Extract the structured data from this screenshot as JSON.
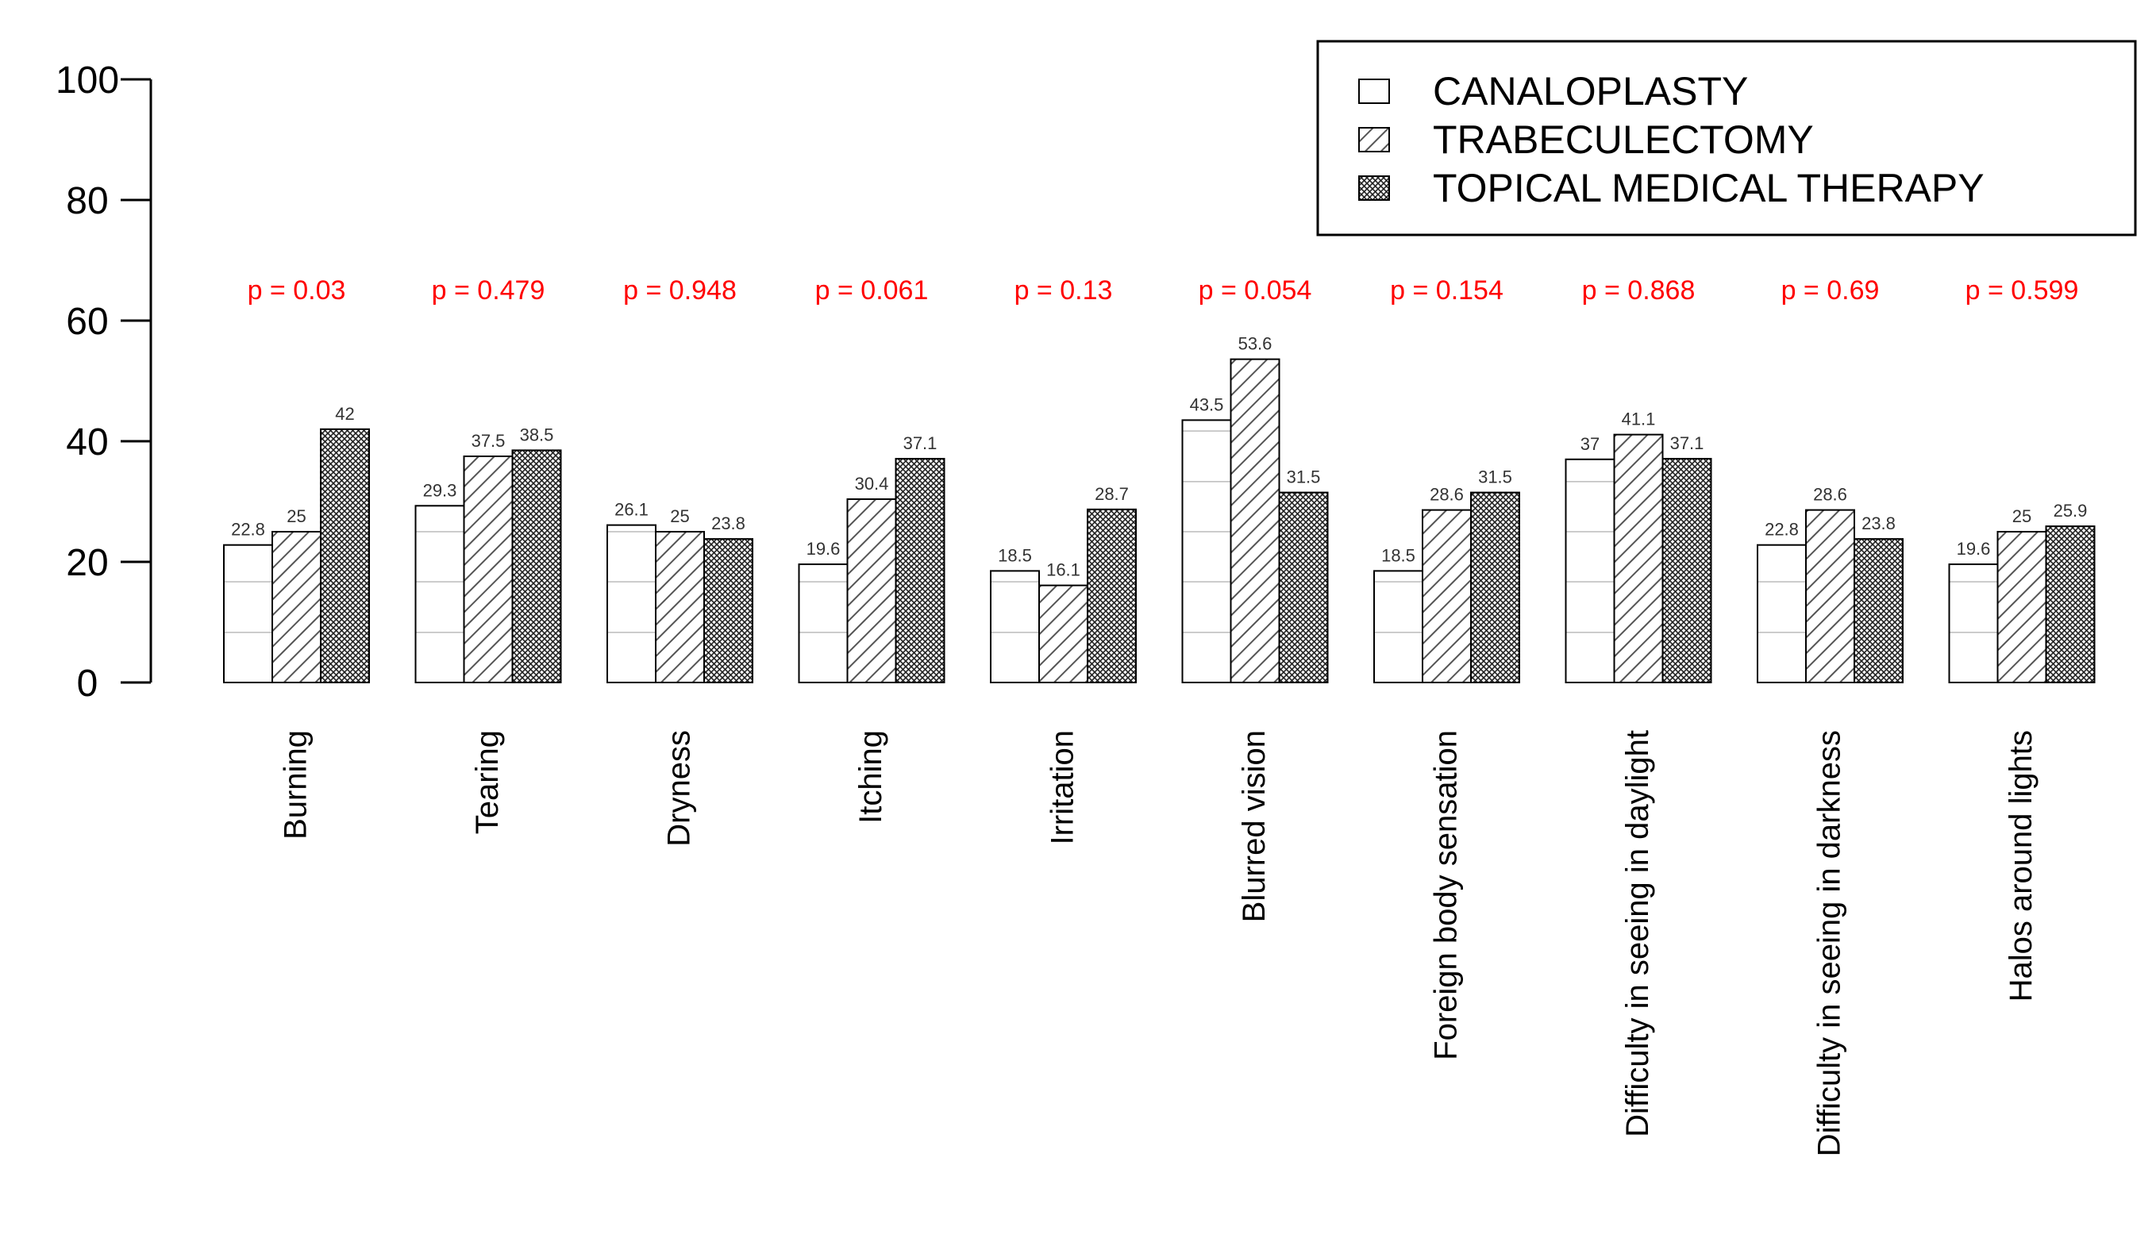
{
  "chart_data": {
    "type": "bar",
    "title": "",
    "xlabel": "",
    "ylabel": "",
    "ylim": [
      0,
      100
    ],
    "yticks": [
      0,
      20,
      40,
      60,
      80,
      100
    ],
    "categories": [
      "Burning",
      "Tearing",
      "Dryness",
      "Itching",
      "Irritation",
      "Blurred vision",
      "Foreign body sensation",
      "Difficulty in seeing in daylight",
      "Difficulty in seeing in darkness",
      "Halos around lights"
    ],
    "series": [
      {
        "name": "CANALOPLASTY",
        "values": [
          22.8,
          29.3,
          26.1,
          19.6,
          18.5,
          43.5,
          18.5,
          37,
          22.8,
          19.6
        ],
        "labels": [
          "22.8",
          "29.3",
          "26.1",
          "19.6",
          "18.5",
          "43.5",
          "18.5",
          "37",
          "22.8",
          "19.6"
        ],
        "fill": "none"
      },
      {
        "name": "TRABECULECTOMY",
        "values": [
          25,
          37.5,
          25,
          30.4,
          16.1,
          53.6,
          28.6,
          41.1,
          28.6,
          25
        ],
        "labels": [
          "25",
          "37.5",
          "25",
          "30.4",
          "16.1",
          "53.6",
          "28.6",
          "41.1",
          "28.6",
          "25"
        ],
        "fill": "diagonal-hatch"
      },
      {
        "name": "TOPICAL MEDICAL THERAPY",
        "values": [
          42,
          38.5,
          23.8,
          37.1,
          28.7,
          31.5,
          31.5,
          37.1,
          23.8,
          25.9
        ],
        "labels": [
          "42",
          "38.5",
          "23.8",
          "37.1",
          "28.7",
          "31.5",
          "31.5",
          "37.1",
          "23.8",
          "25.9"
        ],
        "fill": "cross-hatch"
      }
    ],
    "p_values": [
      "p =  0.03",
      "p =  0.479",
      "p =  0.948",
      "p =  0.061",
      "p =  0.13",
      "p =  0.054",
      "p =  0.154",
      "p =  0.868",
      "p =  0.69",
      "p =  0.599"
    ],
    "p_value_color": "#ff0000",
    "grid_lines_in_bars": [
      8.3,
      16.7,
      25,
      33.3,
      41.7,
      50
    ],
    "legend_position": "top-right",
    "grid": false
  }
}
